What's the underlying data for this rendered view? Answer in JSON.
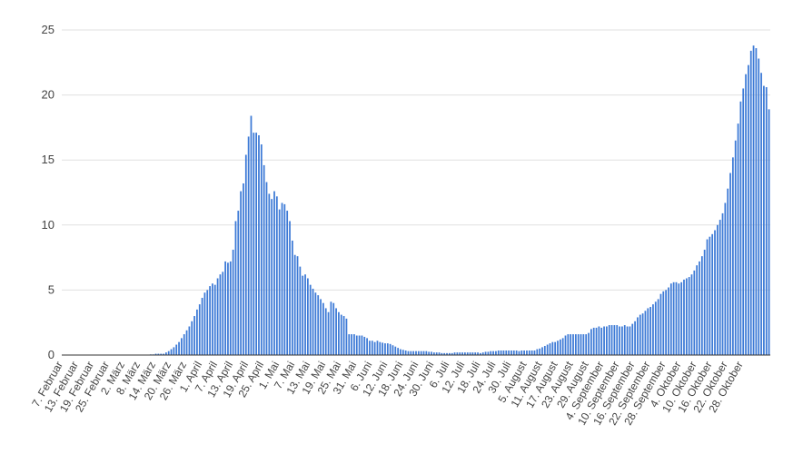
{
  "chart_data": {
    "type": "bar",
    "title": "",
    "xlabel": "",
    "ylabel": "",
    "ylim": [
      0,
      25
    ],
    "yticks": [
      0,
      5,
      10,
      15,
      20,
      25
    ],
    "grid": true,
    "legend": "none",
    "bar_color": "#3d7ad6",
    "x_start": "2020-02-07",
    "tick_every_days": 6,
    "xtick_labels": [
      "7. Februar",
      "13. Februar",
      "19. Februar",
      "25. Februar",
      "2. März",
      "8. März",
      "14. März",
      "20. März",
      "26. März",
      "1. April",
      "7. April",
      "13. April",
      "19. April",
      "25. April",
      "1. Mai",
      "7. Mai",
      "13. Mai",
      "19. Mai",
      "25. Mai",
      "31. Mai",
      "6. Juni",
      "12. Juni",
      "18. Juni",
      "24. Juni",
      "30. Juni",
      "6. Juli",
      "12. Juli",
      "18. Juli",
      "24. Juli",
      "30. Juli",
      "5. August",
      "11. August",
      "17. August",
      "23. August",
      "29. August",
      "4. September",
      "10. September",
      "16. September",
      "22. September",
      "28. September",
      "4. Oktober",
      "10. Oktober",
      "16. Oktober",
      "22. Oktober",
      "28. Oktober"
    ],
    "values": [
      0,
      0,
      0,
      0,
      0,
      0,
      0,
      0,
      0,
      0,
      0,
      0,
      0,
      0,
      0,
      0,
      0,
      0,
      0,
      0,
      0,
      0,
      0,
      0,
      0,
      0,
      0,
      0,
      0,
      0,
      0,
      0,
      0,
      0,
      0.05,
      0.05,
      0.1,
      0.1,
      0.1,
      0.1,
      0.2,
      0.3,
      0.45,
      0.6,
      0.8,
      1.0,
      1.3,
      1.6,
      1.9,
      2.2,
      2.6,
      3.0,
      3.5,
      3.9,
      4.4,
      4.8,
      5.0,
      5.3,
      5.5,
      5.4,
      5.9,
      6.2,
      6.4,
      7.2,
      7.1,
      7.2,
      8.1,
      10.3,
      11.1,
      12.6,
      13.2,
      15.4,
      16.8,
      18.4,
      17.1,
      17.1,
      16.9,
      16.2,
      14.6,
      13.3,
      12.4,
      12.0,
      12.6,
      12.2,
      11.2,
      11.7,
      11.6,
      11.1,
      10.3,
      8.8,
      7.7,
      7.6,
      6.8,
      6.1,
      6.2,
      5.9,
      5.4,
      5.1,
      4.8,
      4.6,
      4.3,
      4.0,
      3.6,
      3.3,
      4.1,
      4.0,
      3.6,
      3.3,
      3.1,
      3.0,
      2.8,
      1.6,
      1.6,
      1.6,
      1.5,
      1.5,
      1.5,
      1.4,
      1.3,
      1.1,
      1.1,
      1.0,
      1.1,
      1.0,
      0.95,
      0.9,
      0.9,
      0.85,
      0.75,
      0.65,
      0.55,
      0.45,
      0.4,
      0.35,
      0.3,
      0.3,
      0.3,
      0.3,
      0.3,
      0.3,
      0.3,
      0.3,
      0.25,
      0.25,
      0.2,
      0.2,
      0.2,
      0.15,
      0.15,
      0.15,
      0.15,
      0.15,
      0.2,
      0.2,
      0.2,
      0.2,
      0.2,
      0.2,
      0.2,
      0.2,
      0.2,
      0.2,
      0.15,
      0.2,
      0.25,
      0.25,
      0.3,
      0.3,
      0.3,
      0.35,
      0.35,
      0.35,
      0.35,
      0.35,
      0.35,
      0.35,
      0.35,
      0.3,
      0.35,
      0.35,
      0.35,
      0.35,
      0.35,
      0.35,
      0.45,
      0.5,
      0.6,
      0.7,
      0.8,
      0.9,
      1.0,
      1.0,
      1.1,
      1.2,
      1.3,
      1.5,
      1.6,
      1.6,
      1.6,
      1.6,
      1.6,
      1.6,
      1.6,
      1.6,
      1.7,
      2.0,
      2.1,
      2.1,
      2.2,
      2.1,
      2.2,
      2.2,
      2.3,
      2.3,
      2.3,
      2.3,
      2.2,
      2.2,
      2.3,
      2.2,
      2.2,
      2.4,
      2.6,
      2.9,
      3.1,
      3.2,
      3.4,
      3.6,
      3.7,
      3.9,
      4.1,
      4.3,
      4.7,
      4.9,
      5.0,
      5.2,
      5.5,
      5.6,
      5.6,
      5.5,
      5.6,
      5.8,
      5.9,
      6.0,
      6.2,
      6.5,
      6.9,
      7.2,
      7.6,
      8.1,
      8.9,
      9.1,
      9.3,
      9.6,
      10.0,
      10.4,
      10.9,
      11.7,
      12.8,
      14.0,
      15.2,
      16.5,
      17.8,
      19.5,
      20.5,
      21.6,
      22.3,
      23.4,
      23.8,
      23.6,
      22.8,
      21.7,
      20.7,
      20.6,
      18.9
    ]
  }
}
